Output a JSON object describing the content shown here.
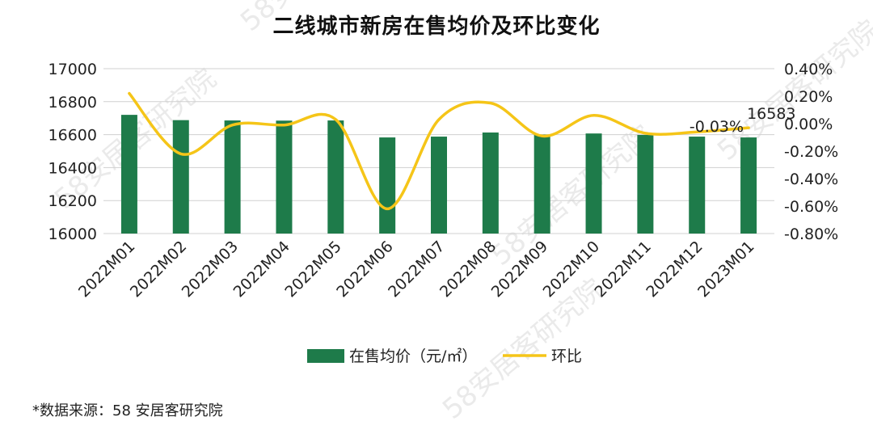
{
  "chart_data": {
    "type": "bar+line",
    "title": "二线城市新房在售均价及环比变化",
    "categories": [
      "2022M01",
      "2022M02",
      "2022M03",
      "2022M04",
      "2022M05",
      "2022M06",
      "2022M07",
      "2022M08",
      "2022M09",
      "2022M10",
      "2022M11",
      "2022M12",
      "2023M01"
    ],
    "series": [
      {
        "name": "在售均价（元/㎡）",
        "type": "bar",
        "axis": "left",
        "color": "#1e7b4a",
        "values": [
          16720,
          16688,
          16686,
          16685,
          16686,
          16583,
          16588,
          16613,
          16601,
          16607,
          16598,
          16588,
          16583
        ]
      },
      {
        "name": "环比",
        "type": "line",
        "axis": "right",
        "color": "#f5c518",
        "values": [
          0.22,
          -0.22,
          -0.01,
          -0.01,
          0.03,
          -0.62,
          0.03,
          0.15,
          -0.09,
          0.06,
          -0.07,
          -0.06,
          -0.03
        ]
      }
    ],
    "y_left": {
      "min": 16000,
      "max": 17000,
      "ticks": [
        16000,
        16200,
        16400,
        16600,
        16800,
        17000
      ]
    },
    "y_right": {
      "min": -0.8,
      "max": 0.4,
      "ticks": [
        "-0.80%",
        "-0.60%",
        "-0.40%",
        "-0.20%",
        "0.00%",
        "0.20%",
        "0.40%"
      ]
    },
    "data_labels": {
      "bar_last": "16583",
      "line_last": "-0.03%"
    },
    "legend": {
      "position": "bottom",
      "items": [
        "在售均价（元/㎡）",
        "环比"
      ]
    },
    "grid": true
  },
  "footer": {
    "source": "*数据来源：58 安居客研究院"
  },
  "watermark": {
    "text": "58安居客研究院"
  }
}
